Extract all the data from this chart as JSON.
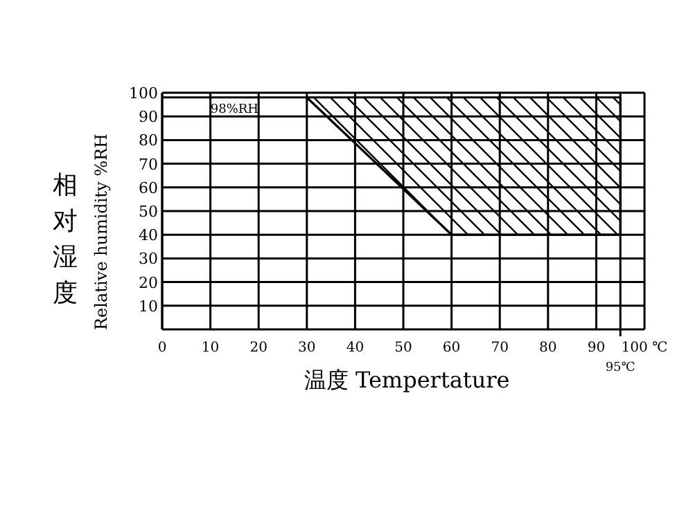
{
  "chart_data": {
    "type": "line",
    "xlabel": "温度 Tempertature",
    "ylabel": "相对湿度 Relative humidity %RH",
    "series": [
      {
        "color": "#000000",
        "x": [
          30,
          60,
          95
        ],
        "values": [
          98,
          40,
          40
        ],
        "lower": [
          98,
          40,
          40
        ],
        "upper": [
          98,
          98,
          98
        ]
      }
    ],
    "xlim": [
      0,
      100
    ],
    "ylim": [
      0,
      100
    ],
    "xticks": [
      0,
      10,
      20,
      30,
      40,
      50,
      60,
      70,
      80,
      90,
      {
        "value": 100,
        "label": "100 ℃"
      }
    ],
    "yticks": [
      10,
      20,
      30,
      40,
      50,
      60,
      70,
      80,
      90,
      100
    ],
    "grid": true,
    "ref_lines": [
      {
        "axis": "y",
        "value": 98,
        "label": "98%RH"
      },
      {
        "axis": "x",
        "value": 95,
        "label": "95℃"
      }
    ]
  }
}
